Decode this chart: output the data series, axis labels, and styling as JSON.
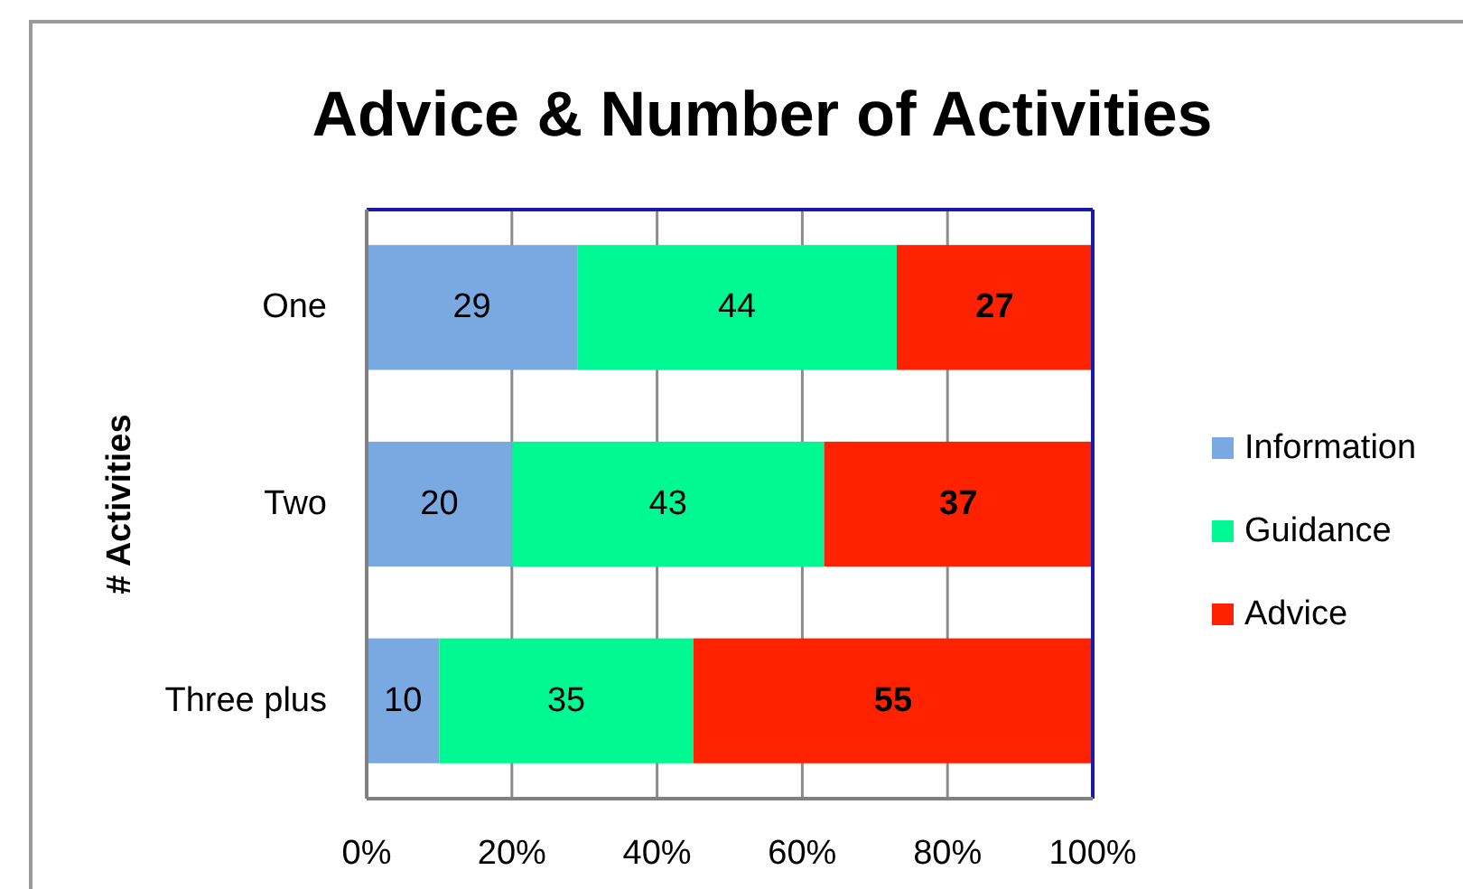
{
  "chart_data": {
    "type": "bar",
    "orientation": "horizontal",
    "stacked": true,
    "title": "Advice & Number of Activities",
    "ylabel": "# Activities",
    "categories": [
      "One",
      "Two",
      "Three plus"
    ],
    "series": [
      {
        "name": "Information",
        "color": "#7aa9e2",
        "values": [
          29,
          20,
          10
        ]
      },
      {
        "name": "Guidance",
        "color": "#00f892",
        "values": [
          44,
          43,
          35
        ]
      },
      {
        "name": "Advice",
        "color": "#ff2200",
        "values": [
          27,
          37,
          55
        ]
      }
    ],
    "xlim": [
      0,
      100
    ],
    "xticks": [
      {
        "value": 0,
        "label": "0%"
      },
      {
        "value": 20,
        "label": "20%"
      },
      {
        "value": 40,
        "label": "40%"
      },
      {
        "value": 60,
        "label": "60%"
      },
      {
        "value": 80,
        "label": "80%"
      },
      {
        "value": 100,
        "label": "100%"
      }
    ],
    "grid": "x",
    "legend": "right",
    "data_labels": true
  }
}
